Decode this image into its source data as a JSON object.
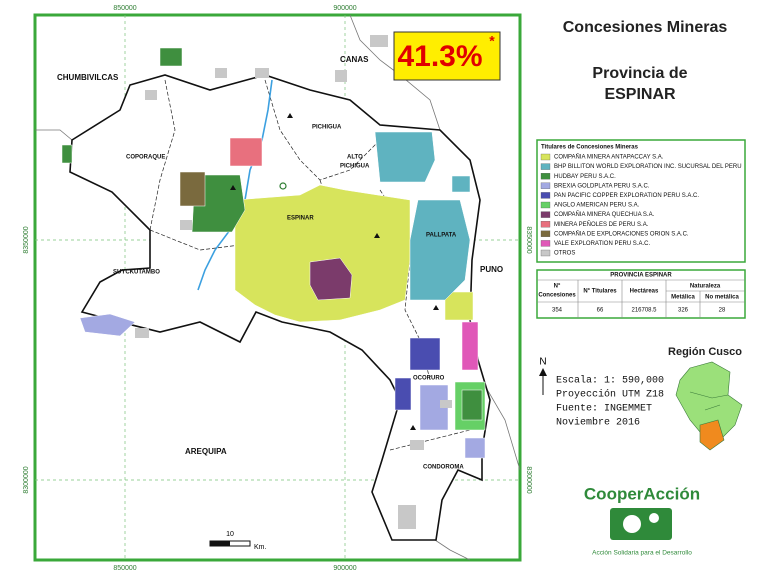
{
  "map": {
    "coords": {
      "top": [
        "850000",
        "900000"
      ],
      "bottom": [
        "850000",
        "900000"
      ],
      "left": [
        "8350000",
        "8300000"
      ],
      "right": [
        "8350000",
        "8300000"
      ]
    },
    "regions": [
      "CHUMBIVILCAS",
      "CANAS",
      "PICHIGUA",
      "COPORAQUE",
      "ALTO",
      "PICHIGUA",
      "ESPINAR",
      "PALLPATA",
      "SUYCKUTAMBO",
      "PUNO",
      "OCORURO",
      "AREQUIPA",
      "CONDOROMA"
    ],
    "percent": "41.3%",
    "asterisk": "*",
    "scale": {
      "number": "10",
      "unit": "Km."
    }
  },
  "header": {
    "title": "Concesiones Mineras",
    "subtitle_line1": "Provincia de",
    "subtitle_line2": "ESPINAR"
  },
  "legend": {
    "title": "Titulares de Concesiones Mineras",
    "items": [
      {
        "label": "COMPAÑIA MINERA ANTAPACCAY S.A.",
        "color": "#d7e45c"
      },
      {
        "label": "BHP BILLITON WORLD EXPLORATION INC. SUCURSAL DEL PERU",
        "color": "#5fb3c0"
      },
      {
        "label": "HUDBAY PERU S.A.C.",
        "color": "#3f8f3f"
      },
      {
        "label": "BREXIA GOLDPLATA PERU S.A.C.",
        "color": "#a3a9e2"
      },
      {
        "label": "PAN PACIFIC COPPER EXPLORATION PERU S.A.C.",
        "color": "#4a4db0"
      },
      {
        "label": "ANGLO AMERICAN PERU S.A.",
        "color": "#66d066"
      },
      {
        "label": "COMPAÑIA MINERA QUECHUA S.A.",
        "color": "#7b3b6b"
      },
      {
        "label": "MINERA PEÑOLES DE PERU S.A.",
        "color": "#e8707e"
      },
      {
        "label": "COMPAÑIA DE EXPLORACIONES ORION S.A.C.",
        "color": "#7a6a3e"
      },
      {
        "label": "VALE EXPLORATION PERU S.A.C.",
        "color": "#e058b8"
      },
      {
        "label": "OTROS",
        "color": "#c8c8c8"
      }
    ]
  },
  "table": {
    "title": "PROVINCIA ESPINAR",
    "headers": [
      "N°",
      "Concesiones",
      "N° Titulares",
      "Hectáreas",
      "Naturaleza",
      "Metálica",
      "No metálica"
    ],
    "row": [
      354,
      66,
      216708.5,
      326,
      28
    ]
  },
  "info": {
    "north": "N",
    "lines": [
      "Escala: 1: 590,000",
      "Proyección UTM Z18",
      "Fuente: INGEMMET",
      "Noviembre  2016"
    ]
  },
  "inset": {
    "title": "Región Cusco"
  },
  "logo": {
    "name": "CooperAcción",
    "tagline": "Acción Solidaria para el Desarrollo"
  }
}
